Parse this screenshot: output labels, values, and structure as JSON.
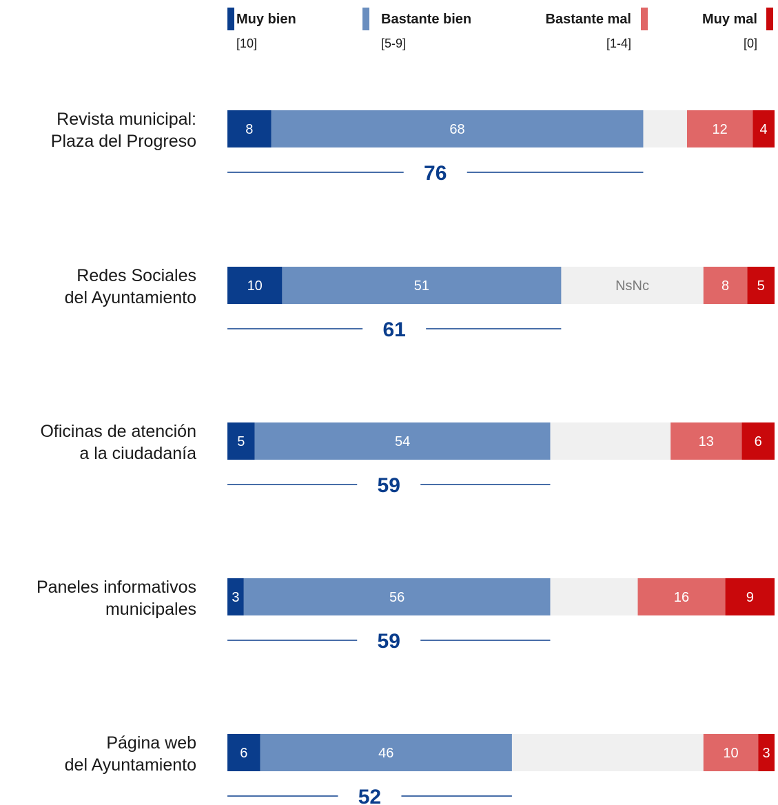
{
  "chart_data": {
    "type": "bar",
    "orientation": "horizontal",
    "stacked": true,
    "scale_max": 100,
    "legend": [
      {
        "key": "muy_bien",
        "label": "Muy bien",
        "range": "[10]",
        "color": "#0a3d8c",
        "align": "left"
      },
      {
        "key": "bastante_bien",
        "label": "Bastante bien",
        "range": "[5-9]",
        "color": "#6a8ebf",
        "align": "left"
      },
      {
        "key": "bastante_mal",
        "label": "Bastante mal",
        "range": "[1-4]",
        "color": "#e06767",
        "align": "right"
      },
      {
        "key": "muy_mal",
        "label": "Muy mal",
        "range": "[0]",
        "color": "#c9080b",
        "align": "right"
      }
    ],
    "nsnc_color": "#f0f0f0",
    "nsnc_label": "NsNc",
    "summary_color": "#0a3d8c",
    "categories": [
      {
        "label_lines": [
          "Revista municipal:",
          "Plaza del Progreso"
        ],
        "muy_bien": 8,
        "bastante_bien": 68,
        "bastante_mal": 12,
        "muy_mal": 4,
        "total_positive": 76,
        "show_nsnc_label": false
      },
      {
        "label_lines": [
          "Redes Sociales",
          "del Ayuntamiento"
        ],
        "muy_bien": 10,
        "bastante_bien": 51,
        "bastante_mal": 8,
        "muy_mal": 5,
        "total_positive": 61,
        "show_nsnc_label": true
      },
      {
        "label_lines": [
          "Oficinas de atención",
          "a la ciudadanía"
        ],
        "muy_bien": 5,
        "bastante_bien": 54,
        "bastante_mal": 13,
        "muy_mal": 6,
        "total_positive": 59,
        "show_nsnc_label": false
      },
      {
        "label_lines": [
          "Paneles informativos",
          "municipales"
        ],
        "muy_bien": 3,
        "bastante_bien": 56,
        "bastante_mal": 16,
        "muy_mal": 9,
        "total_positive": 59,
        "show_nsnc_label": false
      },
      {
        "label_lines": [
          "Página web",
          "del Ayuntamiento"
        ],
        "muy_bien": 6,
        "bastante_bien": 46,
        "bastante_mal": 10,
        "muy_mal": 3,
        "total_positive": 52,
        "show_nsnc_label": false
      }
    ]
  }
}
